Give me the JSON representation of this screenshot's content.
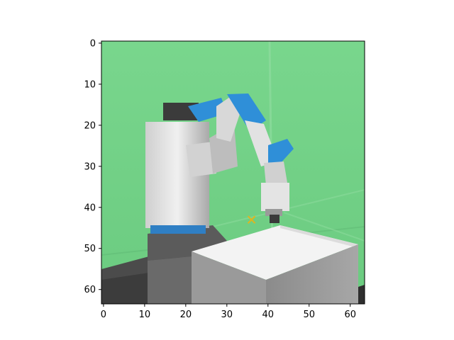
{
  "figure": {
    "type": "image",
    "image_size": [
      64,
      64
    ],
    "x_ticks": [
      "0",
      "10",
      "20",
      "30",
      "40",
      "50",
      "60"
    ],
    "y_ticks": [
      "0",
      "10",
      "20",
      "30",
      "40",
      "50",
      "60"
    ],
    "x_tick_values": [
      0,
      10,
      20,
      30,
      40,
      50,
      60
    ],
    "y_tick_values": [
      0,
      10,
      20,
      30,
      40,
      50,
      60
    ],
    "marker": {
      "symbol": "x",
      "color": "#e3b51b",
      "x": 36,
      "y": 43
    },
    "colors": {
      "background_wall": "#77d38a",
      "table_top": "#f2f2f2",
      "table_side": "#9a9a9a",
      "robot_body": "#d9d9d9",
      "robot_accent": "#2f8fd8",
      "floor": "#4a4a4a"
    }
  }
}
